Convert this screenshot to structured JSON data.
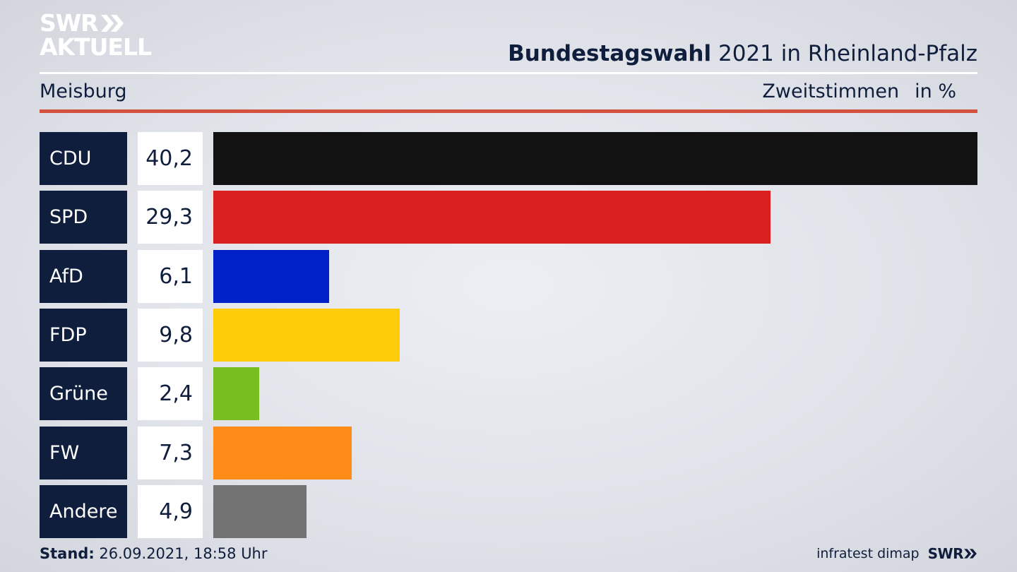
{
  "brand": {
    "line1": "SWR",
    "line2": "AKTUELL",
    "footer_logo": "SWR",
    "arrow_icon": "double-chevron-right-icon"
  },
  "header": {
    "title_bold": "Bundestagswahl",
    "title_rest": "2021 in Rheinland-Pfalz",
    "region": "Meisburg",
    "measure": "Zweitstimmen",
    "unit": "in %"
  },
  "footer": {
    "stand_label": "Stand:",
    "stand_value": "26.09.2021, 18:58 Uhr",
    "source": "infratest dimap"
  },
  "chart_data": {
    "type": "bar",
    "orientation": "horizontal",
    "categories": [
      "CDU",
      "SPD",
      "AfD",
      "FDP",
      "Grüne",
      "FW",
      "Andere"
    ],
    "values": [
      40.2,
      29.3,
      6.1,
      9.8,
      2.4,
      7.3,
      4.9
    ],
    "value_labels": [
      "40,2",
      "29,3",
      "6,1",
      "9,8",
      "2,4",
      "7,3",
      "4,9"
    ],
    "colors": [
      "#121212",
      "#d91f20",
      "#0021c8",
      "#ffcc0a",
      "#78be20",
      "#ff8c19",
      "#727272"
    ],
    "xlim": [
      0,
      40.2
    ],
    "grid": false,
    "legend": "none"
  }
}
